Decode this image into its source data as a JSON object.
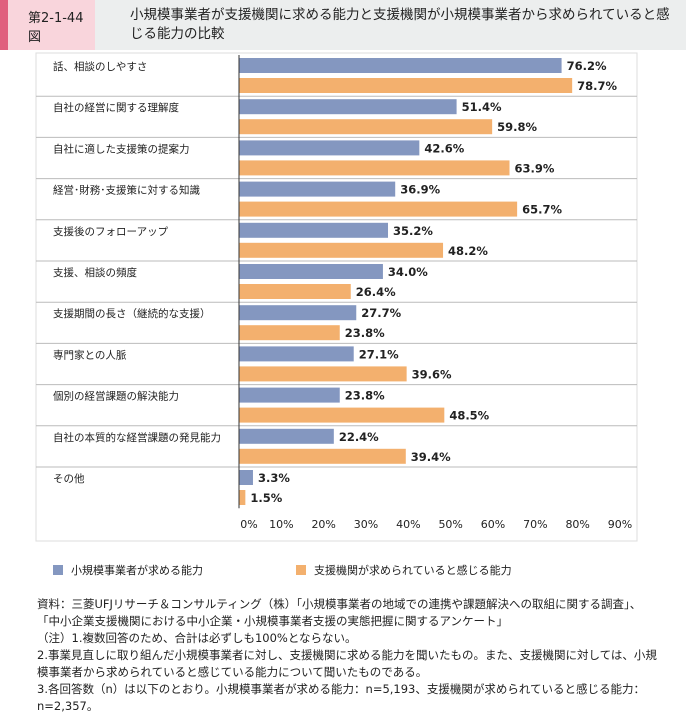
{
  "header": {
    "figure_number": "第2-1-44図",
    "title": "小規模事業者が支援機関に求める能力と支援機関が小規模事業者から求められていると感じる能力の比較"
  },
  "chart_data": {
    "type": "bar",
    "orientation": "horizontal",
    "categories": [
      "話、相談のしやすさ",
      "自社の経営に関する理解度",
      "自社に適した支援策の提案力",
      "経営･財務･支援策に対する知識",
      "支援後のフォローアップ",
      "支援、相談の頻度",
      "支援期間の長さ（継続的な支援）",
      "専門家との人脈",
      "個別の経営課題の解決能力",
      "自社の本質的な経営課題の発見能力",
      "その他"
    ],
    "series": [
      {
        "name": "小規模事業者が求める能力",
        "color": "#8497c0",
        "values": [
          76.2,
          51.4,
          42.6,
          36.9,
          35.2,
          34.0,
          27.7,
          27.1,
          23.8,
          22.4,
          3.3
        ]
      },
      {
        "name": "支援機関が求められていると感じる能力",
        "color": "#f3b06e",
        "values": [
          78.7,
          59.8,
          63.9,
          65.7,
          48.2,
          26.4,
          23.8,
          39.6,
          48.5,
          39.4,
          1.5
        ]
      }
    ],
    "xlim": [
      0,
      90
    ],
    "xticks": [
      "0%",
      "10%",
      "20%",
      "30%",
      "40%",
      "50%",
      "60%",
      "70%",
      "80%",
      "90%"
    ],
    "legend_position": "bottom"
  },
  "notes": [
    "資料：三菱UFJリサーチ＆コンサルティング（株）「小規模事業者の地域での連携や課題解決への取組に関する調査」、「中小企業支援機関における中小企業・小規模事業者支援の実態把握に関するアンケート」",
    "（注）1.複数回答のため、合計は必ずしも100%とならない。",
    "2.事業見直しに取り組んだ小規模事業者に対し、支援機関に求める能力を聞いたもの。また、支援機関に対しては、小規模事業者から求められていると感じている能力について聞いたものである。",
    "3.各回答数（n）は以下のとおり。小規模事業者が求める能力：n=5,193、支援機関が求められていると感じる能力：n=2,357。"
  ]
}
